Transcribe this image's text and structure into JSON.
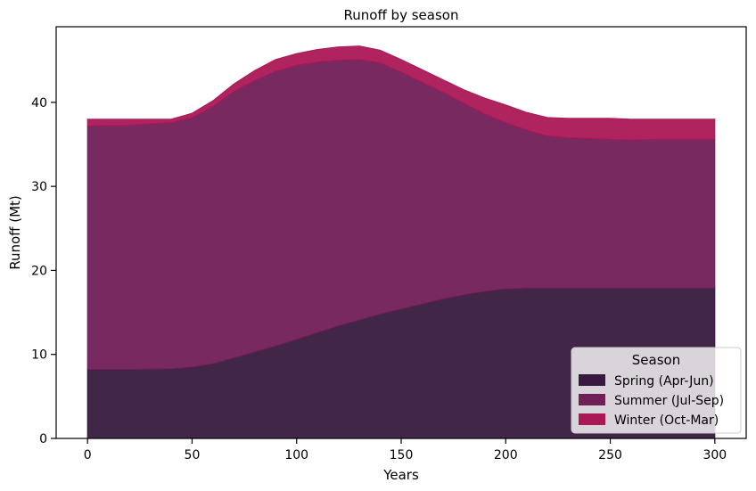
{
  "chart_data": {
    "type": "area",
    "stacked": true,
    "title": "Runoff by season",
    "xlabel": "Years",
    "ylabel": "Runoff (Mt)",
    "xlim": [
      -15,
      315
    ],
    "ylim": [
      0,
      49
    ],
    "xticks": [
      0,
      50,
      100,
      150,
      200,
      250,
      300
    ],
    "yticks": [
      0,
      10,
      20,
      30,
      40
    ],
    "grid": false,
    "legend": {
      "title": "Season",
      "placement": "lower-right"
    },
    "x": [
      0,
      20,
      40,
      50,
      60,
      70,
      80,
      90,
      100,
      110,
      120,
      130,
      140,
      150,
      160,
      170,
      180,
      190,
      200,
      210,
      220,
      230,
      240,
      250,
      260,
      270,
      280,
      290,
      300
    ],
    "series": [
      {
        "name": "Spring (Apr-Jun)",
        "color": "#371a3d",
        "values": [
          8.2,
          8.2,
          8.3,
          8.5,
          8.9,
          9.6,
          10.3,
          11.0,
          11.8,
          12.6,
          13.4,
          14.1,
          14.8,
          15.4,
          16.0,
          16.6,
          17.1,
          17.5,
          17.8,
          17.9,
          17.9,
          17.9,
          17.9,
          17.9,
          17.9,
          17.9,
          17.9,
          17.9,
          17.9
        ]
      },
      {
        "name": "Summer (Jul-Sep)",
        "color": "#711f57",
        "values": [
          29.0,
          29.1,
          29.3,
          29.7,
          30.6,
          31.7,
          32.3,
          32.7,
          32.6,
          32.2,
          31.6,
          31.0,
          29.9,
          28.2,
          26.4,
          24.6,
          22.8,
          21.1,
          19.8,
          18.8,
          18.1,
          17.9,
          17.8,
          17.7,
          17.6,
          17.7,
          17.7,
          17.7,
          17.7
        ]
      },
      {
        "name": "Winter (Oct-Mar)",
        "color": "#ab1856",
        "values": [
          0.8,
          0.7,
          0.4,
          0.5,
          0.7,
          0.9,
          1.2,
          1.4,
          1.4,
          1.5,
          1.6,
          1.6,
          1.5,
          1.5,
          1.5,
          1.5,
          1.6,
          1.9,
          2.1,
          2.1,
          2.2,
          2.3,
          2.4,
          2.5,
          2.5,
          2.4,
          2.4,
          2.4,
          2.4
        ]
      }
    ]
  }
}
